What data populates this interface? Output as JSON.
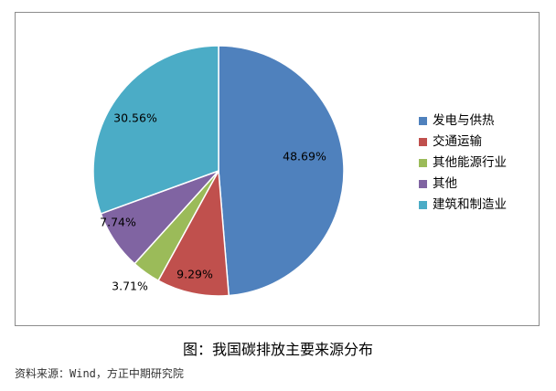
{
  "chart_data": {
    "type": "pie",
    "categories": [
      "发电与供热",
      "交通运输",
      "其他能源行业",
      "其他",
      "建筑和制造业"
    ],
    "values": [
      48.69,
      9.29,
      3.71,
      7.74,
      30.56
    ],
    "labels": [
      "48.69%",
      "9.29%",
      "3.71%",
      "7.74%",
      "30.56%"
    ],
    "colors": [
      "#4f81bd",
      "#c0504d",
      "#9bbb59",
      "#8064a2",
      "#4bacc6"
    ],
    "legend_position": "right",
    "title": "图：我国碳排放主要来源分布"
  },
  "caption": "图：我国碳排放主要来源分布",
  "source": "资料来源：Wind，方正中期研究院"
}
